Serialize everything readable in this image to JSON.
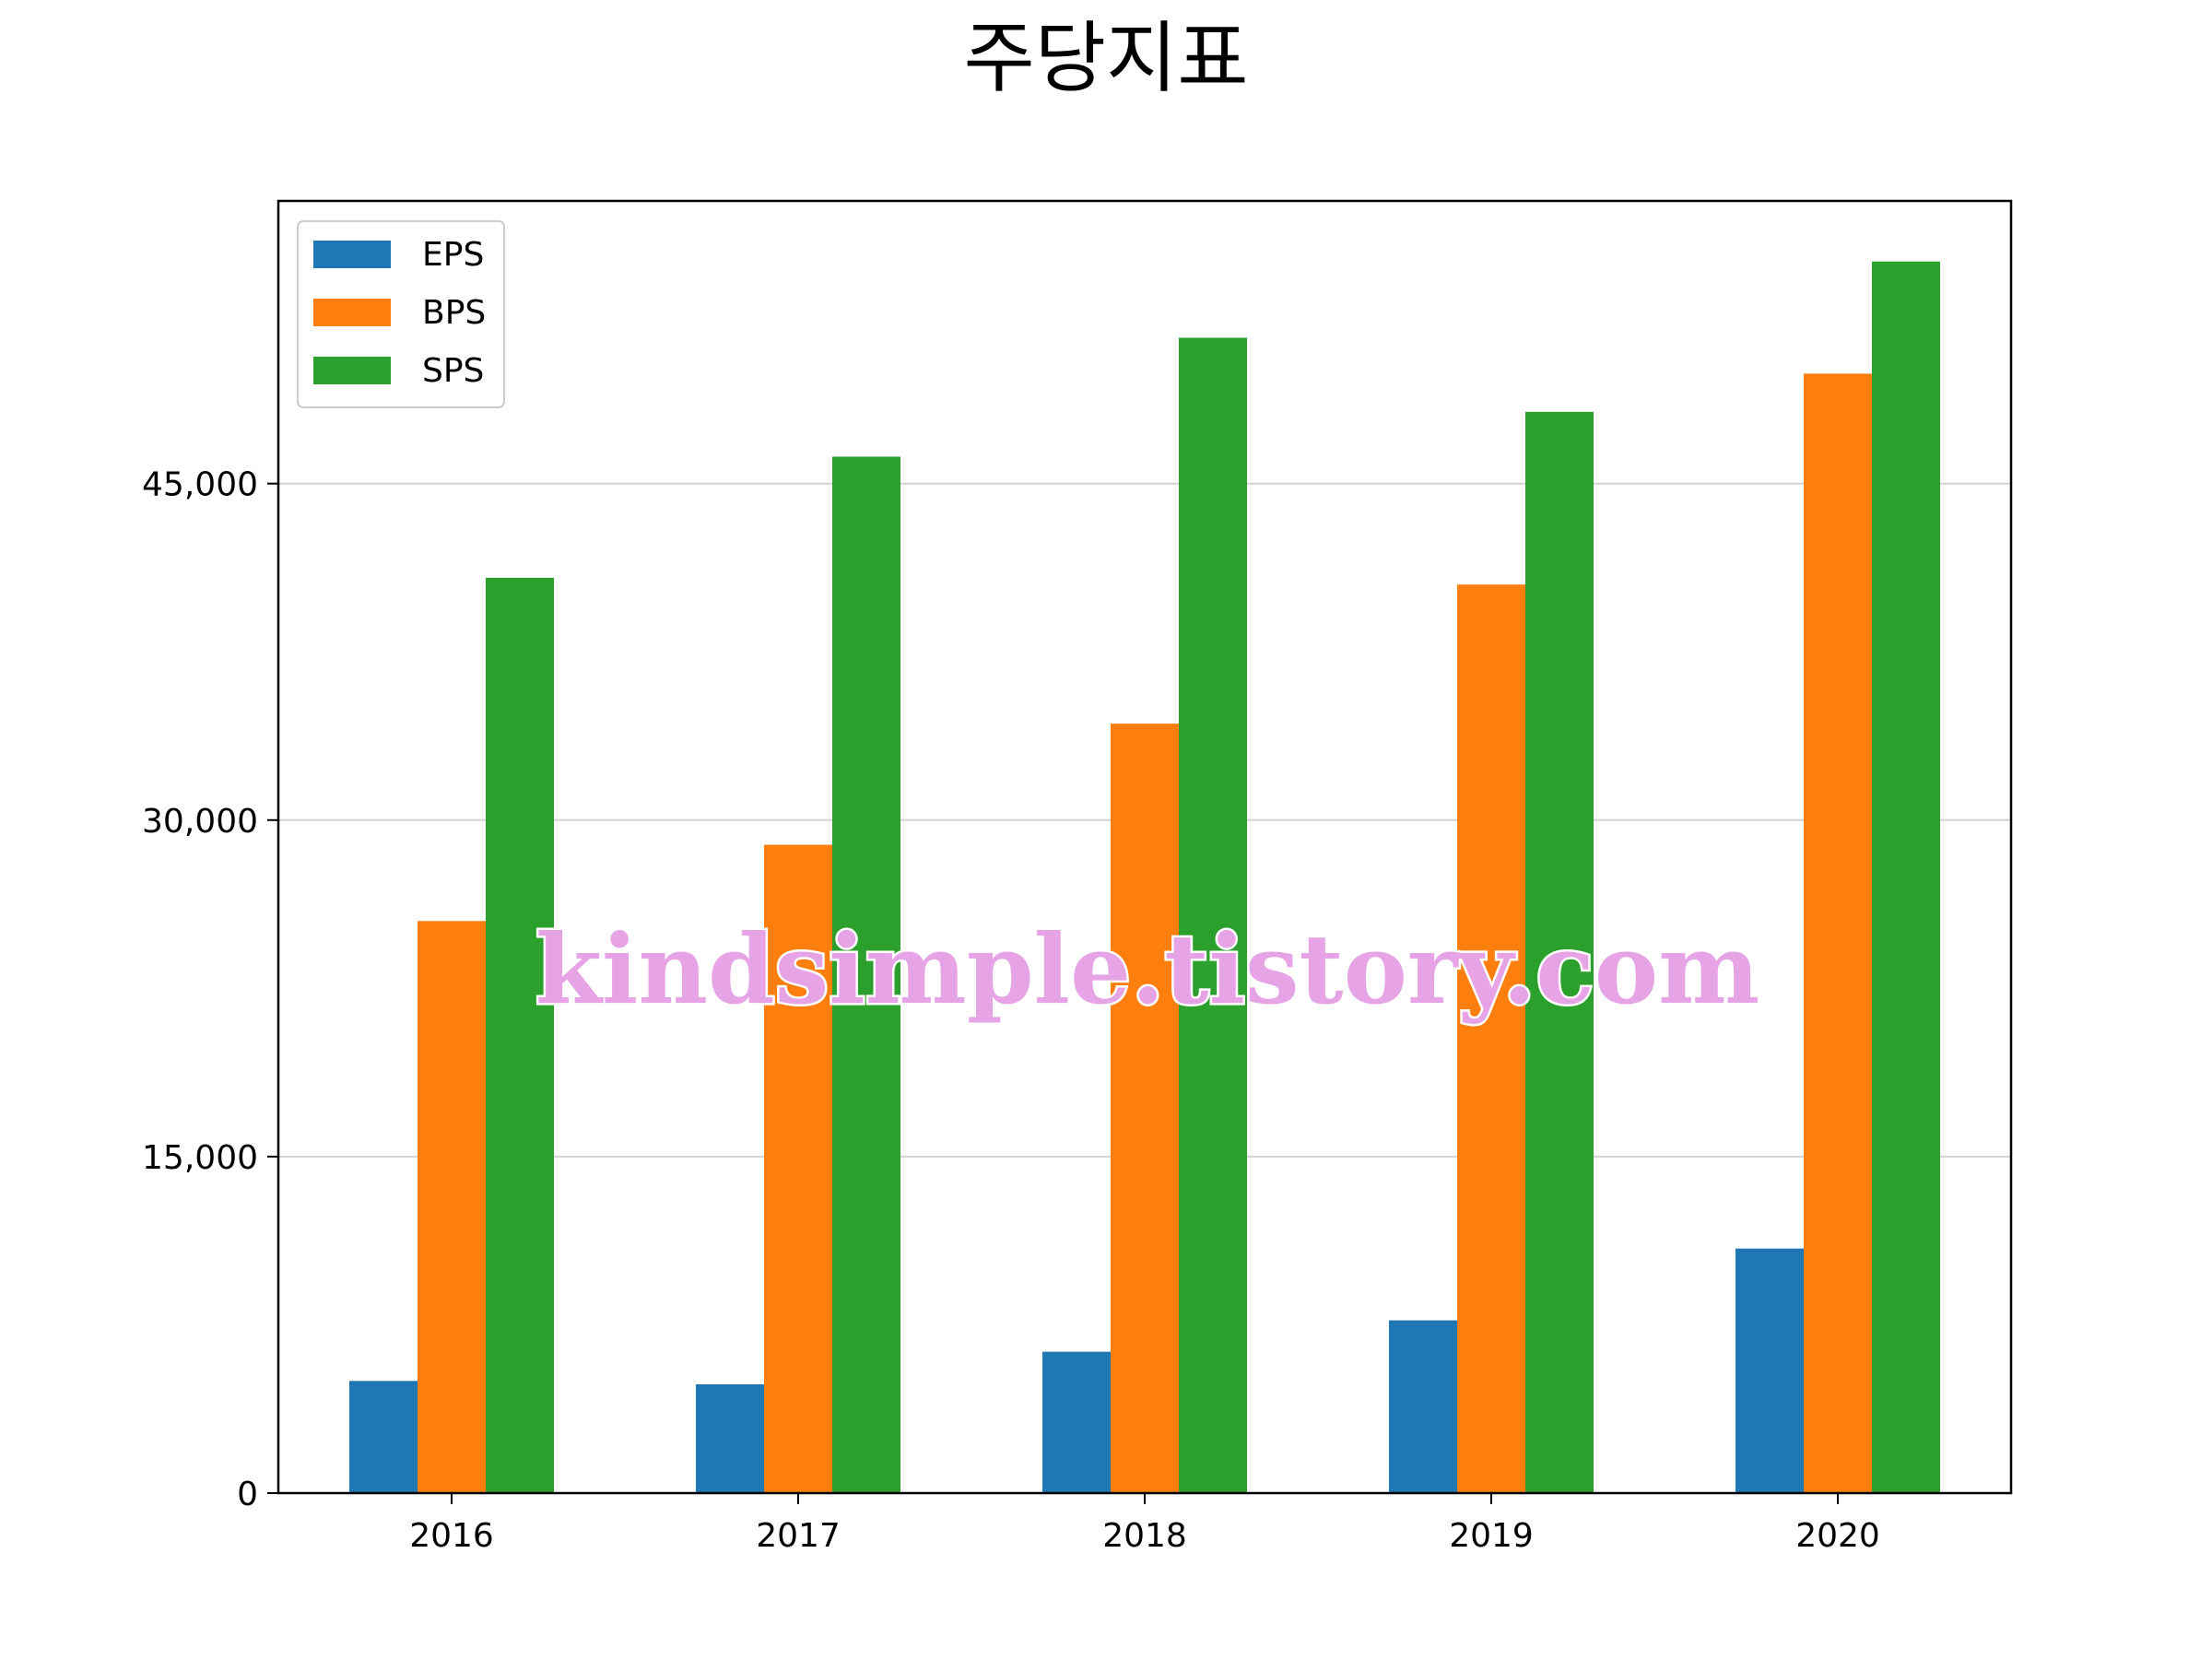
{
  "watermark": "kindsimple.tistory.com",
  "chart_data": {
    "type": "bar",
    "title": "주당지표",
    "xlabel": "",
    "ylabel": "",
    "categories": [
      "2016",
      "2017",
      "2018",
      "2019",
      "2020"
    ],
    "series": [
      {
        "name": "EPS",
        "color": "#1f77b4",
        "values": [
          5000,
          4850,
          6300,
          7700,
          10900
        ]
      },
      {
        "name": "BPS",
        "color": "#ff7f0e",
        "values": [
          25500,
          28900,
          34300,
          40500,
          49900
        ]
      },
      {
        "name": "SPS",
        "color": "#2ca02c",
        "values": [
          40800,
          46200,
          51500,
          48200,
          54900
        ]
      }
    ],
    "ylim": [
      0,
      57600
    ],
    "yticks": [
      0,
      15000,
      30000,
      45000
    ],
    "ytick_labels": [
      "0",
      "15,000",
      "30,000",
      "45,000"
    ],
    "grid": "horizontal",
    "legend_position": "top-left"
  }
}
